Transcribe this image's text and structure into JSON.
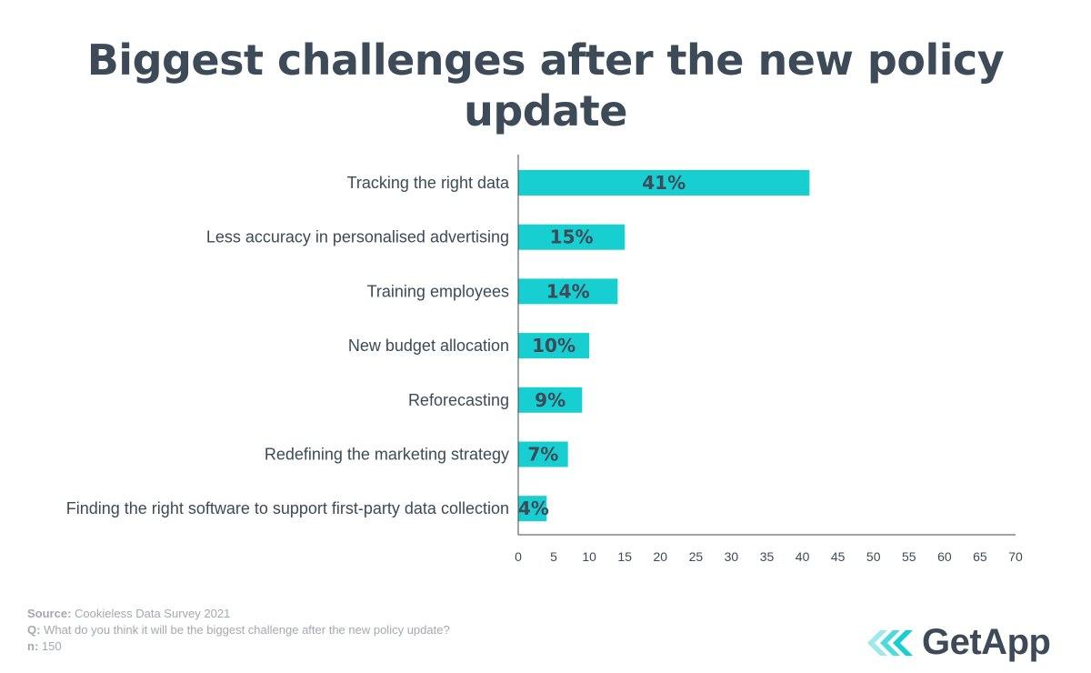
{
  "title_lines": [
    "Biggest challenges after the new policy",
    "update"
  ],
  "chart_data": {
    "type": "bar",
    "orientation": "horizontal",
    "categories": [
      "Tracking the right data",
      "Less accuracy in personalised advertising",
      "Training employees",
      "New budget allocation",
      "Reforecasting",
      "Redefining the marketing strategy",
      "Finding the right software to support first-party data collection"
    ],
    "values": [
      41,
      15,
      14,
      10,
      9,
      7,
      4
    ],
    "data_labels": [
      "41%",
      "15%",
      "14%",
      "10%",
      "9%",
      "7%",
      "4%"
    ],
    "xlim": [
      0,
      70
    ],
    "x_ticks": [
      0,
      5,
      10,
      15,
      20,
      25,
      30,
      35,
      40,
      45,
      50,
      55,
      60,
      65,
      70
    ],
    "grid": false,
    "bar_color": "#17cfd1"
  },
  "footer": {
    "source_label": "Source:",
    "source_value": "Cookieless Data Survey 2021",
    "q_label": "Q:",
    "q_value": "What do you think it will be the biggest challenge after the new policy update?",
    "n_label": "n:",
    "n_value": "150"
  },
  "logo": {
    "text": "GetApp",
    "icon": "getapp-chevrons-icon"
  },
  "colors": {
    "text": "#3d4a57",
    "bar": "#17cfd1",
    "muted": "#a3a9b0"
  }
}
